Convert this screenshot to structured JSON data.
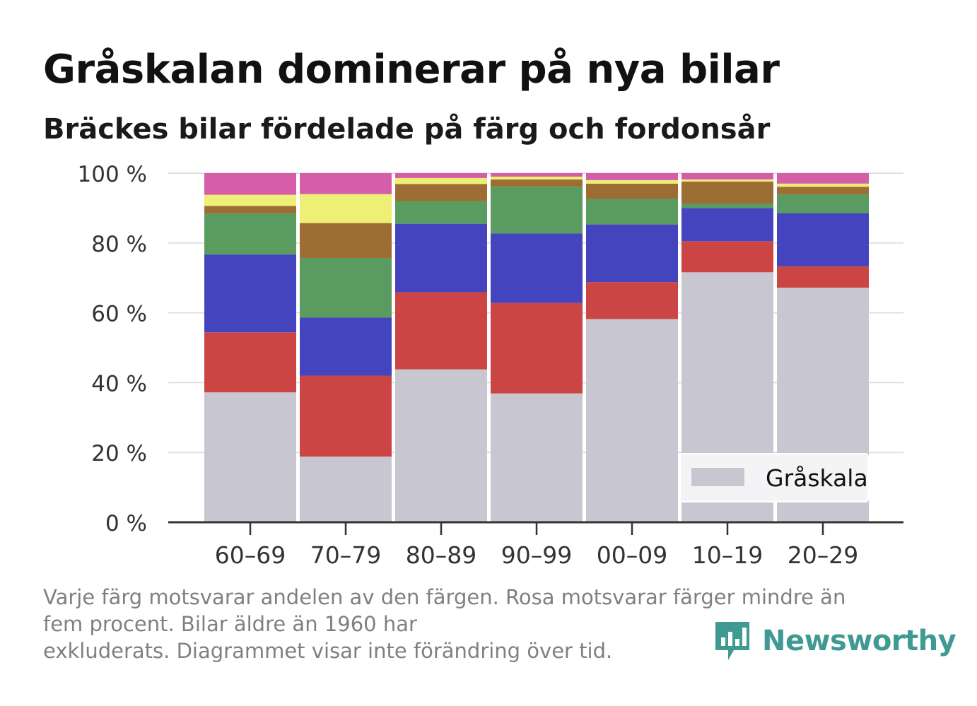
{
  "chart_data": {
    "type": "bar",
    "stacked": true,
    "title": "Gråskalan dominerar på nya bilar",
    "subtitle": "Bräckes bilar fördelade på färg och fordonsår",
    "categories": [
      "60–69",
      "70–79",
      "80–89",
      "90–99",
      "00–09",
      "10–19",
      "20–29"
    ],
    "ylim": [
      0,
      100
    ],
    "yticks": [
      0,
      20,
      40,
      60,
      80,
      100
    ],
    "ytick_labels": [
      "0 %",
      "20 %",
      "40 %",
      "60 %",
      "80 %",
      "100 %"
    ],
    "grid": true,
    "legend_position": "bottom-right",
    "series": [
      {
        "name": "Gråskala",
        "color": "#c8c7d1",
        "values": [
          37.2,
          18.8,
          43.8,
          36.9,
          58.2,
          71.6,
          67.2
        ]
      },
      {
        "color": "#cc4545",
        "values": [
          17.2,
          23.2,
          22.1,
          25.9,
          10.6,
          8.9,
          6.1
        ]
      },
      {
        "color": "#4444bf",
        "values": [
          22.3,
          16.6,
          19.6,
          19.9,
          16.5,
          9.5,
          15.3
        ]
      },
      {
        "color": "#5a9c60",
        "values": [
          11.7,
          17.1,
          6.5,
          13.4,
          7.3,
          1.3,
          5.3
        ]
      },
      {
        "color": "#9c6e34",
        "values": [
          2.2,
          10.0,
          4.9,
          2.1,
          4.4,
          6.3,
          2.2
        ]
      },
      {
        "color": "#eef075",
        "values": [
          3.2,
          8.3,
          1.7,
          0.8,
          1.0,
          0.6,
          0.9
        ]
      },
      {
        "color": "#d65ea8",
        "values": [
          6.2,
          6.0,
          1.4,
          1.0,
          2.0,
          1.8,
          3.0
        ]
      }
    ]
  },
  "caption": {
    "line1": "Varje färg motsvarar andelen av den färgen. Rosa motsvarar färger mindre än",
    "line2": "fem procent. Bilar äldre än 1960 har",
    "line3": "exkluderats. Diagrammet visar inte förändring över tid."
  },
  "brand": {
    "name": "Newsworthy",
    "icon": "newsworthy-logo-icon",
    "color": "#3f9a93"
  }
}
